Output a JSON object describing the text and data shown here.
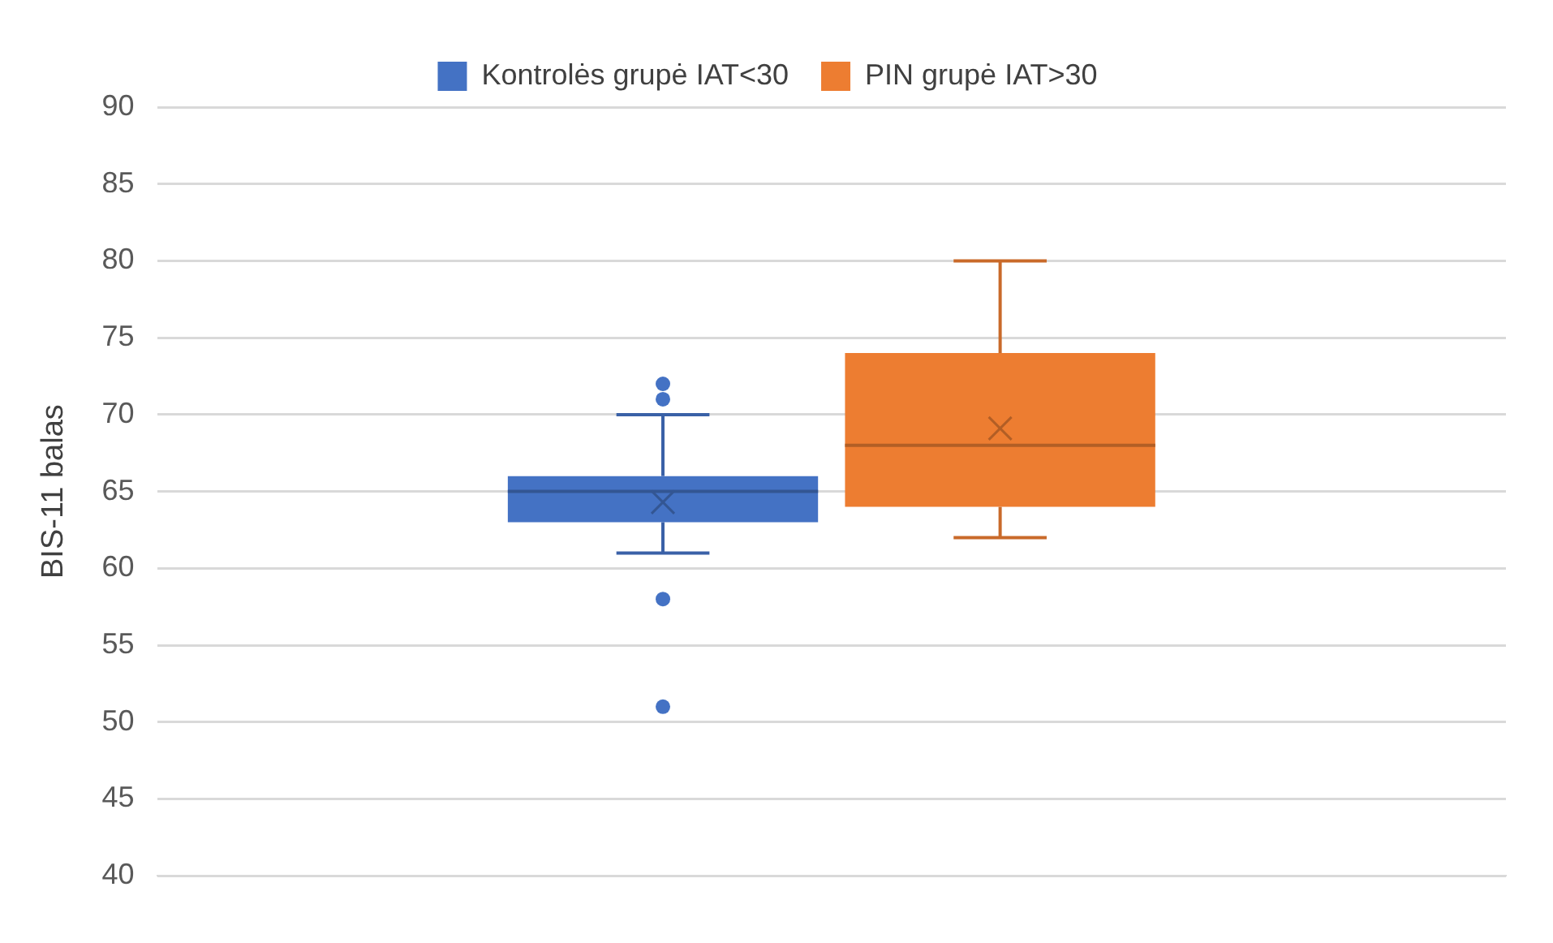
{
  "chart_data": {
    "type": "box",
    "ylabel": "BIS-11 balas",
    "categories": [
      null
    ],
    "series": [
      {
        "name": "Kontrolės grupė IAT<30",
        "color": "#4472c4",
        "boxes": [
          {
            "low": 61,
            "q1": 63,
            "median": 65,
            "q3": 66,
            "high": 70,
            "mean": 64.3,
            "outliers": [
              72,
              71,
              58,
              51
            ]
          }
        ]
      },
      {
        "name": "PIN grupė IAT>30",
        "color": "#ed7d31",
        "boxes": [
          {
            "low": 62,
            "q1": 64,
            "median": 68,
            "q3": 74,
            "high": 80,
            "mean": 69.1
          }
        ]
      }
    ],
    "ylim": [
      40,
      90
    ],
    "yticks": [
      40,
      45,
      50,
      55,
      60,
      65,
      70,
      75,
      80,
      85,
      90
    ],
    "grid": "y",
    "legend": "top",
    "marker": "circle"
  }
}
